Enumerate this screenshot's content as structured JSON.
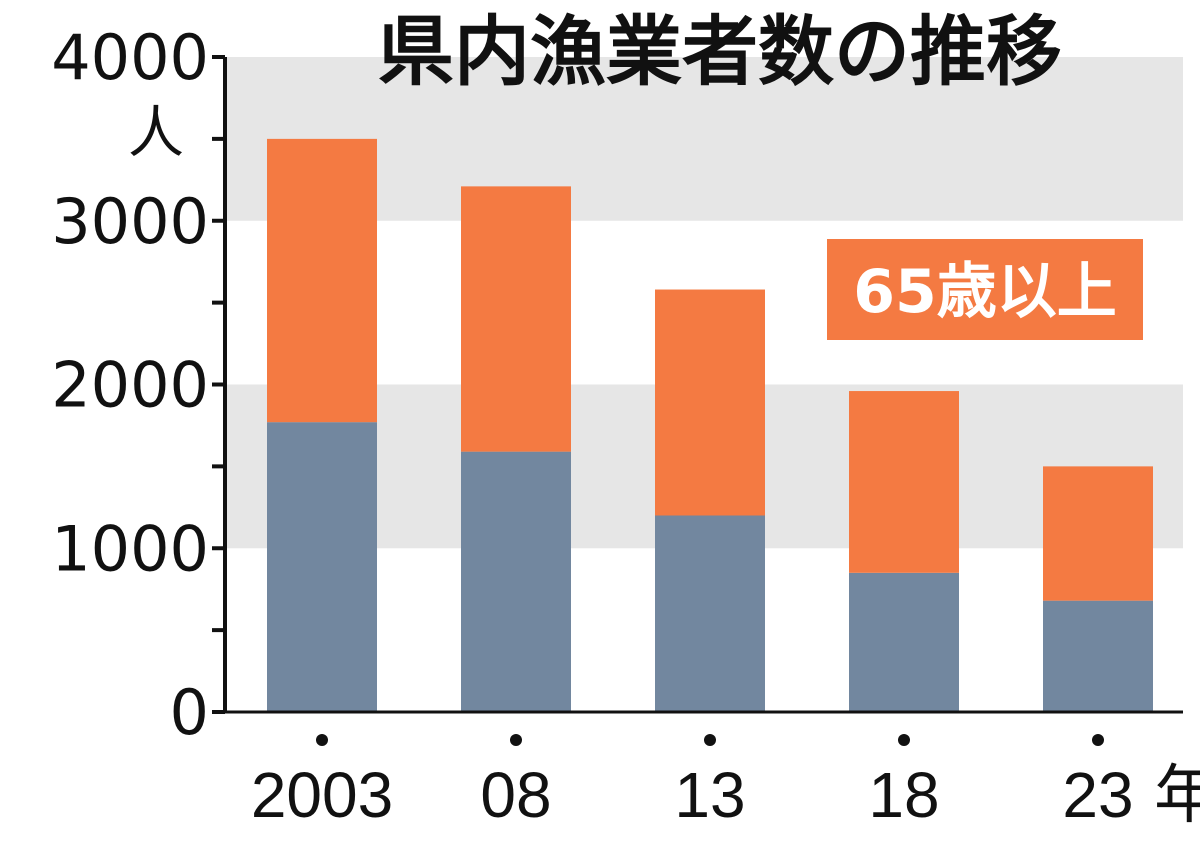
{
  "chart_data": {
    "type": "bar",
    "stacked": true,
    "title": "県内漁業者数の推移",
    "y_unit": "人",
    "x_unit": "年",
    "categories": [
      "2003",
      "08",
      "13",
      "18",
      "23"
    ],
    "series": [
      {
        "name": "",
        "color": "#72879f",
        "values": [
          1770,
          1590,
          1200,
          850,
          680
        ]
      },
      {
        "name": "65歳以上",
        "color": "#f47a42",
        "values": [
          1730,
          1620,
          1380,
          1110,
          820
        ]
      }
    ],
    "totals": [
      3500,
      3210,
      2580,
      1960,
      1500
    ],
    "ylim": [
      0,
      4000
    ],
    "yticks": [
      0,
      1000,
      2000,
      3000,
      4000
    ],
    "ytick_labels": [
      "0",
      "1000",
      "2000",
      "3000",
      "4000"
    ],
    "grid_bands": [
      [
        1000,
        2000
      ],
      [
        3000,
        4000
      ]
    ],
    "band_color": "#e6e6e6",
    "legend_label": "65歳以上"
  }
}
